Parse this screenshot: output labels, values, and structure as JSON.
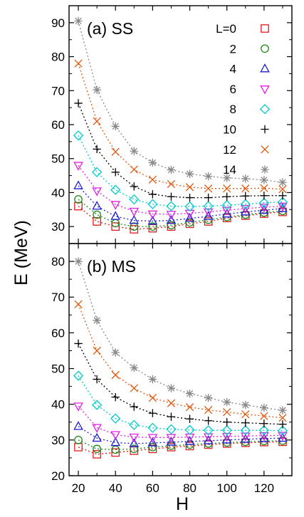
{
  "figure": {
    "ylabel": "E (MeV)",
    "xlabel": "H"
  },
  "chart_data": [
    {
      "type": "scatter",
      "panel_label": "(a) SS",
      "xlim": [
        15,
        135
      ],
      "ylim": [
        25,
        95
      ],
      "xticks": [
        20,
        40,
        60,
        80,
        100,
        120
      ],
      "yticks": [
        30,
        40,
        50,
        60,
        70,
        80,
        90
      ],
      "x": [
        20,
        30,
        40,
        50,
        60,
        70,
        80,
        90,
        100,
        110,
        120,
        130
      ],
      "legend": "top-right",
      "series": [
        {
          "name": "L=0",
          "marker": "square",
          "color": "#e41a1c",
          "values": [
            36,
            31.5,
            30,
            29.2,
            29.5,
            30,
            30.8,
            31.5,
            32.5,
            33.2,
            33.8,
            34.3
          ]
        },
        {
          "name": "2",
          "marker": "circle",
          "color": "#1a8a1a",
          "values": [
            38,
            33.5,
            31,
            30,
            30,
            30.4,
            31.2,
            32,
            32.8,
            33.5,
            34.1,
            34.6
          ]
        },
        {
          "name": "4",
          "marker": "triangle-up",
          "color": "#1f1fd6",
          "values": [
            42,
            36,
            33,
            31.8,
            31.6,
            31.8,
            32.4,
            33,
            33.7,
            34.3,
            34.8,
            35.3
          ]
        },
        {
          "name": "6",
          "marker": "triangle-down",
          "color": "#e020e0",
          "values": [
            48,
            40.5,
            36.5,
            34.5,
            33.7,
            33.6,
            33.9,
            34.3,
            34.8,
            35.3,
            35.7,
            36
          ]
        },
        {
          "name": "8",
          "marker": "diamond",
          "color": "#00cccc",
          "values": [
            56.8,
            46,
            40.8,
            38,
            36.6,
            36,
            35.9,
            36,
            36.3,
            36.6,
            37,
            37.2
          ]
        },
        {
          "name": "10",
          "marker": "plus",
          "color": "#000000",
          "values": [
            66.3,
            52.8,
            46,
            41.8,
            39.5,
            38.8,
            38.5,
            38.5,
            38.8,
            39,
            39.1,
            39.1
          ]
        },
        {
          "name": "12",
          "marker": "cross",
          "color": "#e05a10",
          "values": [
            78,
            61,
            52,
            46.8,
            43.8,
            42.5,
            41.6,
            41.2,
            41.2,
            41.2,
            41.3,
            41
          ]
        },
        {
          "name": "14",
          "marker": "star",
          "color": "#888888",
          "values": [
            90.5,
            70.2,
            59.5,
            52.2,
            48.8,
            46.7,
            45.5,
            44.8,
            44.3,
            44.1,
            43.7,
            43
          ]
        }
      ]
    },
    {
      "type": "scatter",
      "panel_label": "(b) MS",
      "xlim": [
        15,
        135
      ],
      "ylim": [
        20,
        85
      ],
      "xticks": [
        20,
        40,
        60,
        80,
        100,
        120
      ],
      "yticks": [
        20,
        30,
        40,
        50,
        60,
        70,
        80
      ],
      "x": [
        20,
        30,
        40,
        50,
        60,
        70,
        80,
        90,
        100,
        110,
        120,
        130
      ],
      "series": [
        {
          "name": "L=0",
          "marker": "square",
          "color": "#e41a1c",
          "values": [
            28,
            26,
            26.5,
            27,
            27.5,
            28,
            28.3,
            28.7,
            29,
            29.2,
            29.4,
            29.5
          ]
        },
        {
          "name": "2",
          "marker": "circle",
          "color": "#1a8a1a",
          "values": [
            30,
            27.5,
            27.3,
            27.5,
            28,
            28.4,
            28.7,
            29,
            29.3,
            29.5,
            29.7,
            29.8
          ]
        },
        {
          "name": "4",
          "marker": "triangle-up",
          "color": "#1f1fd6",
          "values": [
            33.8,
            30.5,
            29.3,
            29,
            29.2,
            29.4,
            29.6,
            29.8,
            30,
            30.2,
            30.4,
            30.5
          ]
        },
        {
          "name": "6",
          "marker": "triangle-down",
          "color": "#e020e0",
          "values": [
            39.5,
            33.5,
            31.5,
            30.8,
            30.7,
            30.7,
            30.8,
            30.9,
            31,
            31.1,
            31.2,
            31.3
          ]
        },
        {
          "name": "8",
          "marker": "diamond",
          "color": "#00cccc",
          "values": [
            48,
            39.8,
            36,
            34.2,
            33.4,
            33,
            32.8,
            32.7,
            32.7,
            32.7,
            32.7,
            32.6
          ]
        },
        {
          "name": "10",
          "marker": "plus",
          "color": "#000000",
          "values": [
            57,
            47,
            42,
            39.3,
            37.5,
            36.5,
            35.9,
            35.4,
            35,
            34.8,
            34.6,
            34.4
          ]
        },
        {
          "name": "12",
          "marker": "cross",
          "color": "#e05a10",
          "values": [
            68,
            55,
            48.2,
            44.5,
            41.8,
            40.3,
            39.2,
            38.4,
            37.8,
            37.2,
            36.7,
            36.2
          ]
        },
        {
          "name": "14",
          "marker": "star",
          "color": "#888888",
          "values": [
            80,
            63.5,
            54.5,
            50.2,
            47,
            44.5,
            43,
            41.8,
            40.6,
            39.8,
            39,
            38.3
          ]
        }
      ]
    }
  ]
}
